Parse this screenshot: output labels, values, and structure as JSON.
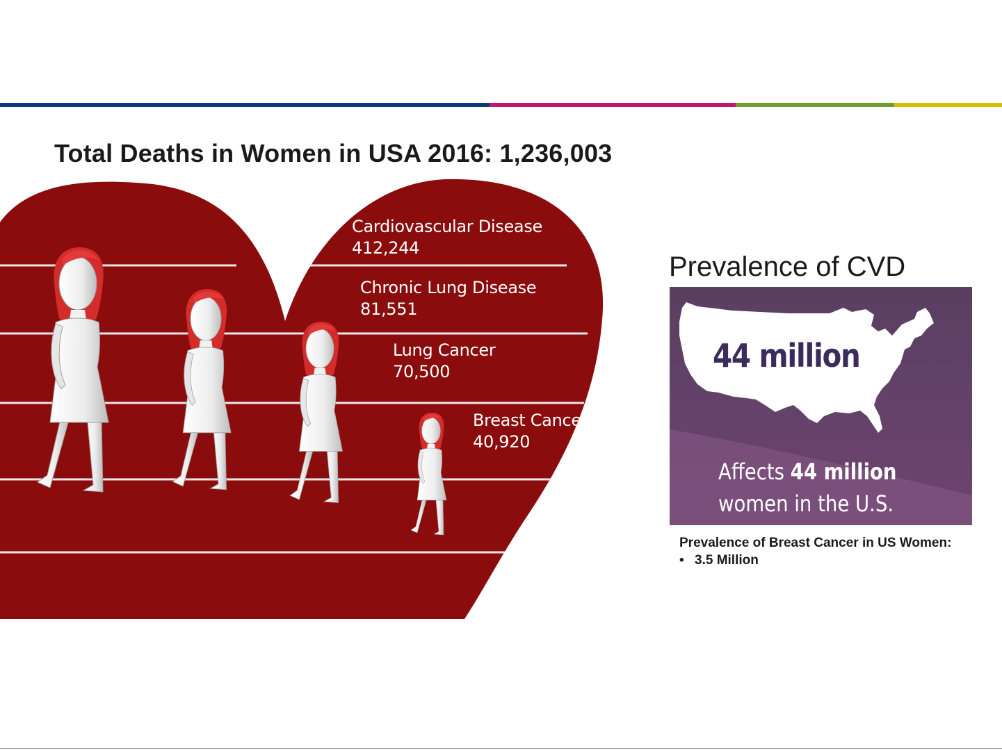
{
  "header": {
    "accent_colors": [
      "#0d3b7c",
      "#c2186f",
      "#6e9e30",
      "#d6bf00"
    ]
  },
  "main_title": "Total Deaths in Women in USA 2016: 1,236,003",
  "causes_of_death": [
    {
      "label": "Cardiovascular Disease",
      "value": "412,244"
    },
    {
      "label": "Chronic Lung Disease",
      "value": "81,551"
    },
    {
      "label": "Lung Cancer",
      "value": "70,500"
    },
    {
      "label": "Breast Cancer",
      "value": "40,920"
    }
  ],
  "heart_color": "#8b0c0c",
  "figure_icon": "woman-figure-icon",
  "cvd": {
    "title": "Prevalence of CVD",
    "map_value": "44 million",
    "affects_prefix": "Affects ",
    "affects_bold": "44 million",
    "affects_line2": "women in the U.S.",
    "panel_color": "#5d3f62"
  },
  "breast_cancer_prevalence": {
    "heading": "Prevalence of Breast Cancer in US Women:",
    "bullet_symbol": "•",
    "bullet": "3.5 Million"
  }
}
